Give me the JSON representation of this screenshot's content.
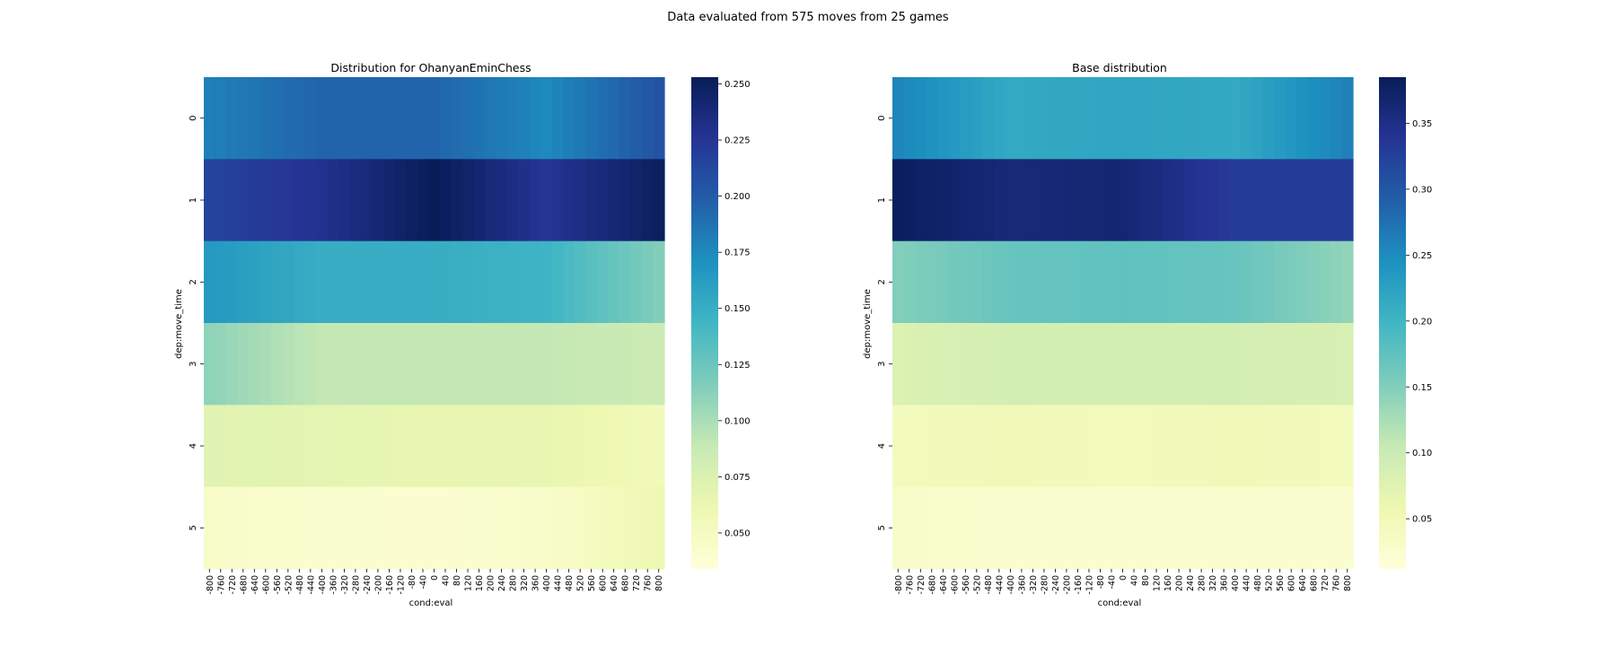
{
  "figure": {
    "suptitle": "Data evaluated from 575 moves from 25 games"
  },
  "colormap": {
    "name": "YlGnBu",
    "stops": [
      "#ffffd9",
      "#edf8b1",
      "#c7e9b4",
      "#7fcdbb",
      "#41b6c4",
      "#1d91c0",
      "#225ea8",
      "#253494",
      "#081d58"
    ]
  },
  "chart_data": [
    {
      "type": "heatmap",
      "title": "Distribution for OhanyanEminChess",
      "xlabel": "cond:eval",
      "ylabel": "dep:move_time",
      "x_categories": [
        "-800",
        "-760",
        "-720",
        "-680",
        "-640",
        "-600",
        "-560",
        "-520",
        "-480",
        "-440",
        "-400",
        "-360",
        "-320",
        "-280",
        "-240",
        "-200",
        "-160",
        "-120",
        "-80",
        "-40",
        "0",
        "40",
        "80",
        "120",
        "160",
        "200",
        "240",
        "280",
        "320",
        "360",
        "400",
        "440",
        "480",
        "520",
        "560",
        "600",
        "640",
        "680",
        "720",
        "760",
        "800"
      ],
      "y_categories": [
        "0",
        "1",
        "2",
        "3",
        "4",
        "5"
      ],
      "vmin": 0.034,
      "vmax": 0.253,
      "colorbar_ticks": [
        0.05,
        0.075,
        0.1,
        0.125,
        0.15,
        0.175,
        0.2,
        0.225,
        0.25
      ],
      "colorbar_ticklabels": [
        "0.050",
        "0.075",
        "0.100",
        "0.125",
        "0.150",
        "0.175",
        "0.200",
        "0.225",
        "0.250"
      ],
      "row_profiles": [
        {
          "row": "0",
          "x_at": [
            -800,
            -400,
            0,
            400,
            800
          ],
          "values": [
            0.18,
            0.195,
            0.195,
            0.175,
            0.205
          ]
        },
        {
          "row": "1",
          "x_at": [
            -800,
            -400,
            0,
            400,
            800
          ],
          "values": [
            0.215,
            0.228,
            0.253,
            0.225,
            0.25
          ]
        },
        {
          "row": "2",
          "x_at": [
            -800,
            -400,
            0,
            400,
            800
          ],
          "values": [
            0.165,
            0.15,
            0.15,
            0.145,
            0.115
          ]
        },
        {
          "row": "3",
          "x_at": [
            -800,
            -400,
            0,
            400,
            800
          ],
          "values": [
            0.11,
            0.09,
            0.09,
            0.09,
            0.085
          ]
        },
        {
          "row": "4",
          "x_at": [
            -800,
            -400,
            0,
            400,
            800
          ],
          "values": [
            0.07,
            0.068,
            0.065,
            0.065,
            0.055
          ]
        },
        {
          "row": "5",
          "x_at": [
            -800,
            -400,
            0,
            400,
            800
          ],
          "values": [
            0.045,
            0.042,
            0.04,
            0.045,
            0.06
          ]
        }
      ]
    },
    {
      "type": "heatmap",
      "title": "Base distribution",
      "xlabel": "cond:eval",
      "ylabel": "dep:move_time",
      "x_categories": [
        "-800",
        "-760",
        "-720",
        "-680",
        "-640",
        "-600",
        "-560",
        "-520",
        "-480",
        "-440",
        "-400",
        "-360",
        "-320",
        "-280",
        "-240",
        "-200",
        "-160",
        "-120",
        "-80",
        "-40",
        "0",
        "40",
        "80",
        "120",
        "160",
        "200",
        "240",
        "280",
        "320",
        "360",
        "400",
        "440",
        "480",
        "520",
        "560",
        "600",
        "640",
        "680",
        "720",
        "760",
        "800"
      ],
      "y_categories": [
        "0",
        "1",
        "2",
        "3",
        "4",
        "5"
      ],
      "vmin": 0.012,
      "vmax": 0.385,
      "colorbar_ticks": [
        0.05,
        0.1,
        0.15,
        0.2,
        0.25,
        0.3,
        0.35
      ],
      "colorbar_ticklabels": [
        "0.05",
        "0.10",
        "0.15",
        "0.20",
        "0.25",
        "0.30",
        "0.35"
      ],
      "row_profiles": [
        {
          "row": "0",
          "x_at": [
            -800,
            -400,
            0,
            400,
            800
          ],
          "values": [
            0.255,
            0.215,
            0.22,
            0.215,
            0.26
          ]
        },
        {
          "row": "1",
          "x_at": [
            -800,
            -400,
            0,
            400,
            800
          ],
          "values": [
            0.38,
            0.36,
            0.365,
            0.33,
            0.33
          ]
        },
        {
          "row": "2",
          "x_at": [
            -800,
            -400,
            0,
            400,
            800
          ],
          "values": [
            0.15,
            0.17,
            0.175,
            0.17,
            0.14
          ]
        },
        {
          "row": "3",
          "x_at": [
            -800,
            -400,
            0,
            400,
            800
          ],
          "values": [
            0.08,
            0.09,
            0.09,
            0.09,
            0.085
          ]
        },
        {
          "row": "4",
          "x_at": [
            -800,
            -400,
            0,
            400,
            800
          ],
          "values": [
            0.045,
            0.05,
            0.045,
            0.05,
            0.045
          ]
        },
        {
          "row": "5",
          "x_at": [
            -800,
            -400,
            0,
            400,
            800
          ],
          "values": [
            0.03,
            0.025,
            0.025,
            0.025,
            0.025
          ]
        }
      ]
    }
  ]
}
